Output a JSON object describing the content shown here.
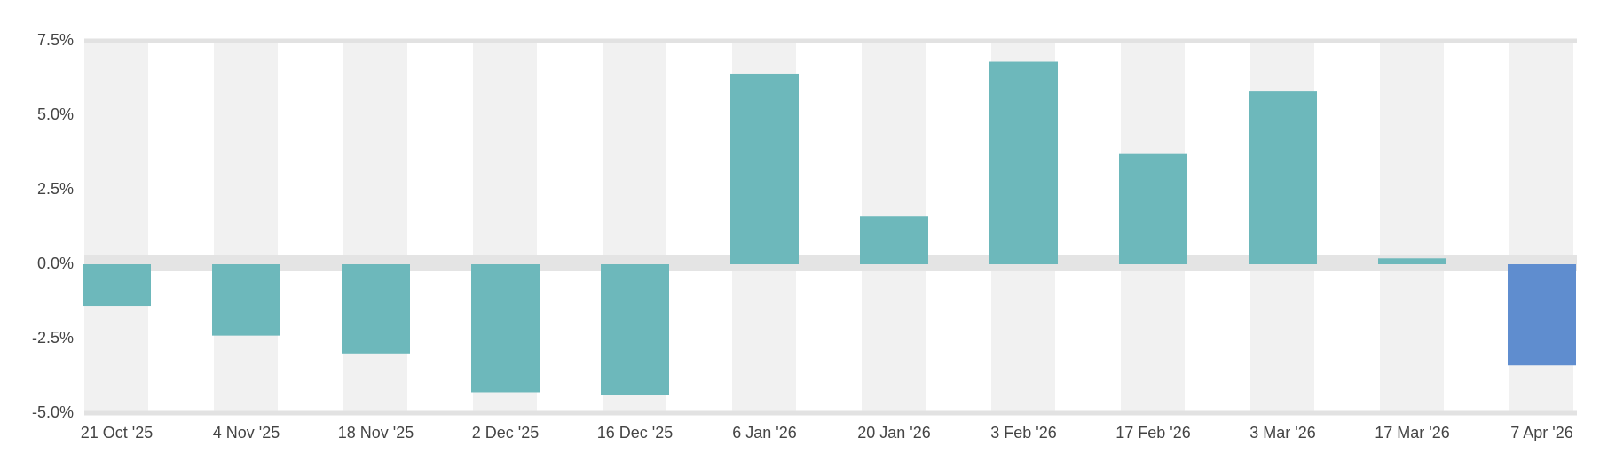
{
  "chart_data": {
    "type": "bar",
    "categories": [
      "21 Oct '25",
      "4 Nov '25",
      "18 Nov '25",
      "2 Dec '25",
      "16 Dec '25",
      "6 Jan '26",
      "20 Jan '26",
      "3 Feb '26",
      "17 Feb '26",
      "3 Mar '26",
      "17 Mar '26",
      "7 Apr '26"
    ],
    "values": [
      -1.4,
      -2.4,
      -3.0,
      -4.3,
      -4.4,
      6.4,
      1.6,
      6.8,
      3.7,
      5.8,
      0.2,
      -3.4
    ],
    "colors": [
      "#6db8bb",
      "#6db8bb",
      "#6db8bb",
      "#6db8bb",
      "#6db8bb",
      "#6db8bb",
      "#6db8bb",
      "#6db8bb",
      "#6db8bb",
      "#6db8bb",
      "#6db8bb",
      "#5f8dcf"
    ],
    "ylim": [
      -5,
      7.5
    ],
    "yticks": [
      {
        "value": 7.5,
        "label": "7.5%"
      },
      {
        "value": 5,
        "label": "5.0%"
      },
      {
        "value": 2.5,
        "label": "2.5%"
      },
      {
        "value": 0,
        "label": "0.0%"
      },
      {
        "value": -2.5,
        "label": "-2.5%"
      },
      {
        "value": -5,
        "label": "-5.0%"
      }
    ]
  }
}
